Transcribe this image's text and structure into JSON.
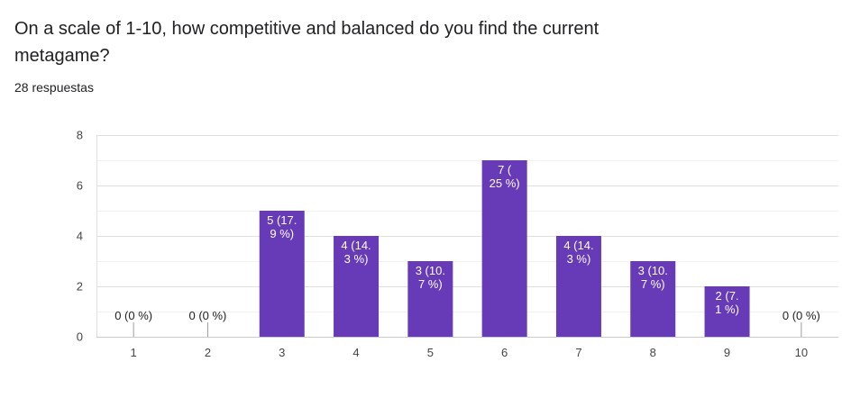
{
  "question": {
    "title": "On a scale of 1-10, how competitive and balanced do you find the current metagame?",
    "response_count": "28 respuestas"
  },
  "colors": {
    "bar": "#673ab7",
    "text": "#202124",
    "grid": "#e0e0e0"
  },
  "chart_data": {
    "type": "bar",
    "categories": [
      "1",
      "2",
      "3",
      "4",
      "5",
      "6",
      "7",
      "8",
      "9",
      "10"
    ],
    "values": [
      0,
      0,
      5,
      4,
      3,
      7,
      4,
      3,
      2,
      0
    ],
    "data_labels": [
      [
        "0 (0 %)"
      ],
      [
        "0 (0 %)"
      ],
      [
        "5 (17.",
        "9 %)"
      ],
      [
        "4 (14.",
        "3 %)"
      ],
      [
        "3 (10.",
        "7 %)"
      ],
      [
        "7 (",
        "25 %)"
      ],
      [
        "4 (14.",
        "3 %)"
      ],
      [
        "3 (10.",
        "7 %)"
      ],
      [
        "2 (7.",
        "1 %)"
      ],
      [
        "0 (0 %)"
      ]
    ],
    "yticks": [
      "0",
      "2",
      "4",
      "6",
      "8"
    ],
    "ylim": [
      0,
      8
    ],
    "grid": true,
    "legend": "none"
  }
}
